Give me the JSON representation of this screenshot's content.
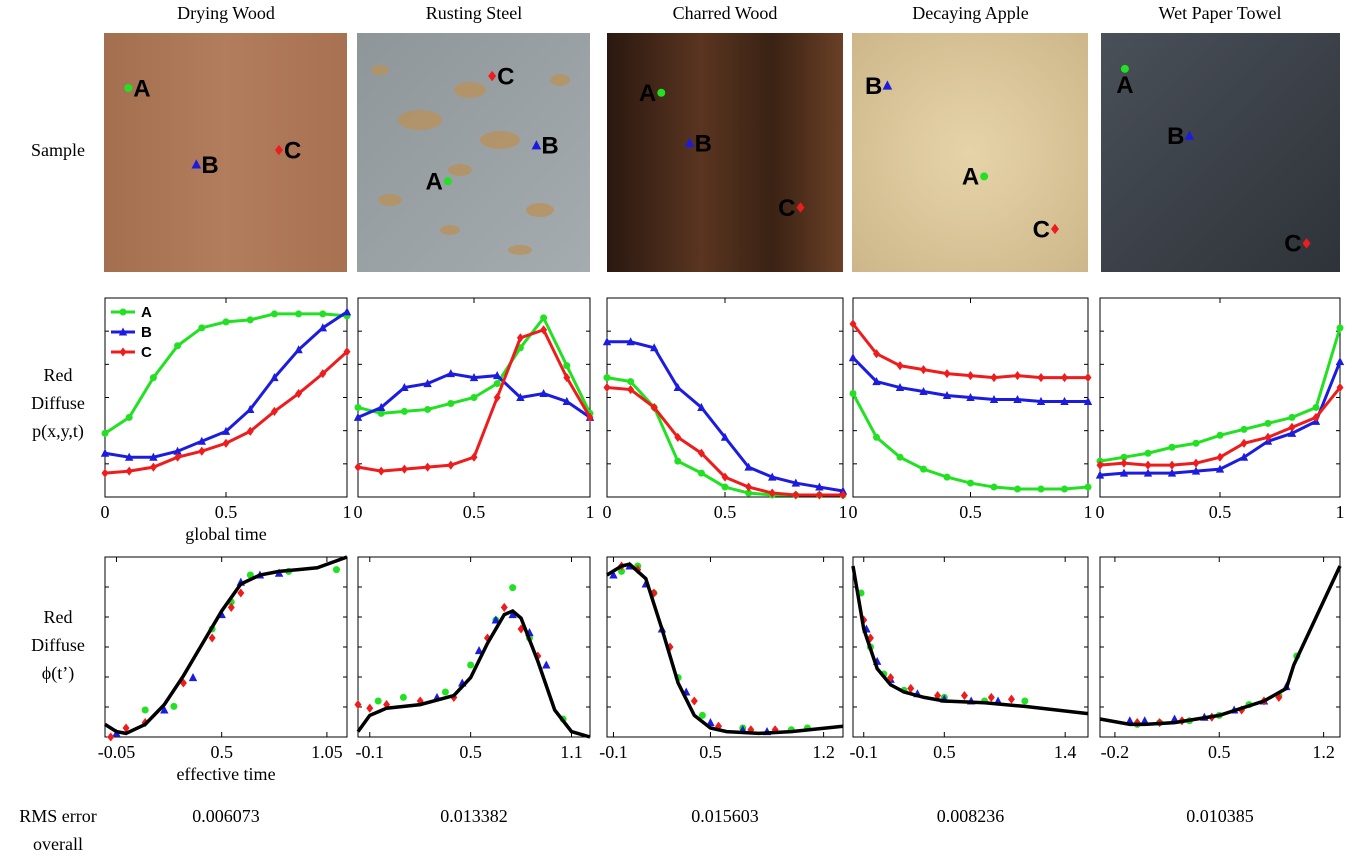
{
  "columns": [
    "Drying Wood",
    "Rusting Steel",
    "Charred Wood",
    "Decaying Apple",
    "Wet Paper Towel"
  ],
  "row_labels": [
    [
      "Sample"
    ],
    [
      "Red",
      "Diffuse",
      "p(x,y,t)"
    ],
    [
      "Red",
      "Diffuse",
      "ϕ(t’)"
    ],
    [
      "RMS error",
      "overall"
    ]
  ],
  "samples": [
    [
      "A",
      "B",
      "C"
    ],
    [
      "C",
      "B",
      "A"
    ],
    [
      "A",
      "B",
      "C"
    ],
    [
      "B",
      "A",
      "C"
    ],
    [
      "A",
      "B",
      "C"
    ]
  ],
  "rms": [
    0.006073,
    0.013382,
    0.015603,
    0.008236,
    0.010385
  ],
  "chart_data": [
    {
      "type": "line",
      "xlabel": "global time",
      "legend": "upper left",
      "xlim": [
        0,
        1
      ],
      "ylim": [
        0,
        1
      ],
      "xticks": [
        0,
        0.5,
        1
      ],
      "x": [
        0,
        0.1,
        0.2,
        0.3,
        0.4,
        0.5,
        0.6,
        0.7,
        0.8,
        0.9,
        1
      ],
      "series": [
        {
          "name": "A",
          "color": "#22e022",
          "marker": "circle",
          "values": [
            0.32,
            0.4,
            0.6,
            0.76,
            0.85,
            0.88,
            0.89,
            0.92,
            0.92,
            0.92,
            0.91
          ]
        },
        {
          "name": "B",
          "color": "#1c1ce0",
          "marker": "triangle",
          "values": [
            0.22,
            0.2,
            0.2,
            0.23,
            0.28,
            0.33,
            0.44,
            0.6,
            0.74,
            0.85,
            0.93
          ]
        },
        {
          "name": "C",
          "color": "#ee1c1c",
          "marker": "diamond",
          "values": [
            0.12,
            0.13,
            0.15,
            0.2,
            0.23,
            0.27,
            0.33,
            0.43,
            0.52,
            0.62,
            0.73
          ]
        }
      ]
    },
    {
      "type": "line",
      "xlim": [
        0,
        1
      ],
      "ylim": [
        0,
        1
      ],
      "xticks": [
        0,
        0.5,
        1
      ],
      "x": [
        0,
        0.1,
        0.2,
        0.3,
        0.4,
        0.5,
        0.6,
        0.7,
        0.8,
        0.9,
        1
      ],
      "series": [
        {
          "name": "A",
          "color": "#22e022",
          "marker": "circle",
          "values": [
            0.45,
            0.42,
            0.43,
            0.44,
            0.47,
            0.5,
            0.57,
            0.75,
            0.9,
            0.66,
            0.42
          ]
        },
        {
          "name": "B",
          "color": "#1c1ce0",
          "marker": "triangle",
          "values": [
            0.4,
            0.45,
            0.55,
            0.57,
            0.62,
            0.6,
            0.61,
            0.5,
            0.52,
            0.48,
            0.4
          ]
        },
        {
          "name": "C",
          "color": "#ee1c1c",
          "marker": "diamond",
          "values": [
            0.15,
            0.13,
            0.14,
            0.15,
            0.16,
            0.2,
            0.5,
            0.8,
            0.84,
            0.6,
            0.4
          ]
        }
      ]
    },
    {
      "type": "line",
      "xlim": [
        0,
        1
      ],
      "ylim": [
        0,
        1
      ],
      "xticks": [
        0,
        0.5,
        1
      ],
      "x": [
        0,
        0.1,
        0.2,
        0.3,
        0.4,
        0.5,
        0.6,
        0.7,
        0.8,
        0.9,
        1
      ],
      "series": [
        {
          "name": "A",
          "color": "#22e022",
          "marker": "circle",
          "values": [
            0.6,
            0.58,
            0.45,
            0.18,
            0.12,
            0.05,
            0.02,
            0.01,
            0.01,
            0.01,
            0.01
          ]
        },
        {
          "name": "B",
          "color": "#1c1ce0",
          "marker": "triangle",
          "values": [
            0.78,
            0.78,
            0.75,
            0.55,
            0.45,
            0.3,
            0.15,
            0.1,
            0.07,
            0.05,
            0.03
          ]
        },
        {
          "name": "C",
          "color": "#ee1c1c",
          "marker": "diamond",
          "values": [
            0.55,
            0.54,
            0.45,
            0.3,
            0.22,
            0.1,
            0.05,
            0.02,
            0.01,
            0.01,
            0.01
          ]
        }
      ]
    },
    {
      "type": "line",
      "xlim": [
        0,
        1
      ],
      "ylim": [
        0,
        1
      ],
      "xticks": [
        0,
        0.5,
        1
      ],
      "x": [
        0,
        0.1,
        0.2,
        0.3,
        0.4,
        0.5,
        0.6,
        0.7,
        0.8,
        0.9,
        1
      ],
      "series": [
        {
          "name": "A",
          "color": "#22e022",
          "marker": "circle",
          "values": [
            0.52,
            0.3,
            0.2,
            0.14,
            0.1,
            0.07,
            0.05,
            0.04,
            0.04,
            0.04,
            0.05
          ]
        },
        {
          "name": "B",
          "color": "#1c1ce0",
          "marker": "triangle",
          "values": [
            0.7,
            0.58,
            0.55,
            0.53,
            0.51,
            0.5,
            0.49,
            0.49,
            0.48,
            0.48,
            0.48
          ]
        },
        {
          "name": "C",
          "color": "#ee1c1c",
          "marker": "diamond",
          "values": [
            0.87,
            0.72,
            0.66,
            0.64,
            0.62,
            0.61,
            0.6,
            0.61,
            0.6,
            0.6,
            0.6
          ]
        }
      ]
    },
    {
      "type": "line",
      "xlim": [
        0,
        1
      ],
      "ylim": [
        0,
        1
      ],
      "xticks": [
        0,
        0.5,
        1
      ],
      "x": [
        0,
        0.1,
        0.2,
        0.3,
        0.4,
        0.5,
        0.6,
        0.7,
        0.8,
        0.9,
        1
      ],
      "series": [
        {
          "name": "A",
          "color": "#22e022",
          "marker": "circle",
          "values": [
            0.18,
            0.2,
            0.22,
            0.25,
            0.27,
            0.31,
            0.34,
            0.37,
            0.4,
            0.45,
            0.85
          ]
        },
        {
          "name": "B",
          "color": "#1c1ce0",
          "marker": "triangle",
          "values": [
            0.11,
            0.12,
            0.12,
            0.12,
            0.13,
            0.14,
            0.2,
            0.28,
            0.32,
            0.38,
            0.68
          ]
        },
        {
          "name": "C",
          "color": "#ee1c1c",
          "marker": "diamond",
          "values": [
            0.16,
            0.17,
            0.16,
            0.16,
            0.17,
            0.2,
            0.27,
            0.3,
            0.35,
            0.4,
            0.55
          ]
        }
      ]
    },
    {
      "type": "scatter",
      "xlabel": "effective time",
      "xlim": [
        -0.11,
        1.155
      ],
      "ylim": [
        0,
        1
      ],
      "xticks": [
        -0.05,
        0.5,
        1.05
      ],
      "series": [
        {
          "name": "A",
          "color": "#22e022",
          "marker": "circle",
          "x": [
            0.1,
            0.25,
            0.45,
            0.55,
            0.65,
            0.85,
            1.1
          ],
          "values": [
            0.15,
            0.17,
            0.6,
            0.75,
            0.9,
            0.92,
            0.93
          ]
        },
        {
          "name": "B",
          "color": "#1c1ce0",
          "marker": "triangle",
          "x": [
            -0.05,
            0.2,
            0.35,
            0.5,
            0.6,
            0.7,
            0.8
          ],
          "values": [
            0.02,
            0.15,
            0.33,
            0.68,
            0.86,
            0.9,
            0.91
          ]
        },
        {
          "name": "C",
          "color": "#ee1c1c",
          "marker": "diamond",
          "x": [
            -0.08,
            0.0,
            0.1,
            0.3,
            0.45,
            0.55,
            0.6
          ],
          "values": [
            0.0,
            0.05,
            0.08,
            0.3,
            0.55,
            0.72,
            0.8
          ]
        }
      ],
      "fit": {
        "color": "#000000",
        "x": [
          -0.11,
          -0.05,
          0,
          0.1,
          0.2,
          0.3,
          0.4,
          0.5,
          0.6,
          0.7,
          0.8,
          0.9,
          1.0,
          1.155
        ],
        "values": [
          0.07,
          0.03,
          0.02,
          0.07,
          0.18,
          0.34,
          0.52,
          0.7,
          0.85,
          0.9,
          0.92,
          0.93,
          0.94,
          1.0
        ]
      }
    },
    {
      "type": "scatter",
      "xlim": [
        -0.17,
        1.21
      ],
      "ylim": [
        0,
        1
      ],
      "xticks": [
        -0.1,
        0.5,
        1.1
      ],
      "series": [
        {
          "name": "A",
          "color": "#22e022",
          "marker": "circle",
          "x": [
            -0.05,
            0.1,
            0.35,
            0.5,
            0.65,
            0.75,
            0.85,
            1.05
          ],
          "values": [
            0.2,
            0.22,
            0.25,
            0.4,
            0.65,
            0.83,
            0.55,
            0.1
          ]
        },
        {
          "name": "B",
          "color": "#1c1ce0",
          "marker": "triangle",
          "x": [
            0.3,
            0.45,
            0.55,
            0.65,
            0.75,
            0.85,
            0.95
          ],
          "values": [
            0.22,
            0.3,
            0.48,
            0.65,
            0.68,
            0.58,
            0.4
          ]
        },
        {
          "name": "C",
          "color": "#ee1c1c",
          "marker": "diamond",
          "x": [
            -0.17,
            -0.1,
            0.0,
            0.2,
            0.4,
            0.6,
            0.7,
            0.8,
            0.9
          ],
          "values": [
            0.18,
            0.16,
            0.18,
            0.2,
            0.22,
            0.55,
            0.72,
            0.6,
            0.45
          ]
        }
      ],
      "fit": {
        "color": "#000000",
        "x": [
          -0.17,
          -0.1,
          0,
          0.2,
          0.4,
          0.5,
          0.6,
          0.7,
          0.75,
          0.8,
          0.9,
          1.0,
          1.1,
          1.21
        ],
        "values": [
          0.03,
          0.12,
          0.16,
          0.18,
          0.23,
          0.33,
          0.52,
          0.68,
          0.7,
          0.66,
          0.42,
          0.15,
          0.03,
          0.0
        ]
      }
    },
    {
      "type": "scatter",
      "xlim": [
        -0.14,
        1.32
      ],
      "ylim": [
        0,
        1
      ],
      "xticks": [
        -0.1,
        0.5,
        1.2
      ],
      "series": [
        {
          "name": "A",
          "color": "#22e022",
          "marker": "circle",
          "x": [
            -0.05,
            0.05,
            0.15,
            0.3,
            0.45,
            0.7,
            1.0,
            1.1
          ],
          "values": [
            0.92,
            0.95,
            0.8,
            0.33,
            0.12,
            0.05,
            0.04,
            0.05
          ]
        },
        {
          "name": "B",
          "color": "#1c1ce0",
          "marker": "triangle",
          "x": [
            -0.1,
            0.0,
            0.1,
            0.2,
            0.35,
            0.5,
            0.7,
            0.85
          ],
          "values": [
            0.9,
            0.95,
            0.85,
            0.6,
            0.25,
            0.08,
            0.04,
            0.03
          ]
        },
        {
          "name": "C",
          "color": "#ee1c1c",
          "marker": "diamond",
          "x": [
            -0.05,
            0.05,
            0.15,
            0.25,
            0.4,
            0.55,
            0.75,
            0.9
          ],
          "values": [
            0.95,
            0.93,
            0.8,
            0.5,
            0.2,
            0.06,
            0.04,
            0.04
          ]
        }
      ],
      "fit": {
        "color": "#000000",
        "x": [
          -0.14,
          -0.05,
          0.0,
          0.1,
          0.2,
          0.3,
          0.4,
          0.5,
          0.6,
          0.8,
          1.0,
          1.32
        ],
        "values": [
          0.9,
          0.95,
          0.96,
          0.88,
          0.6,
          0.3,
          0.12,
          0.05,
          0.03,
          0.02,
          0.03,
          0.06
        ]
      }
    },
    {
      "type": "scatter",
      "xlim": [
        -0.18,
        1.57
      ],
      "ylim": [
        0,
        1
      ],
      "xticks": [
        -0.1,
        0.5,
        1.4
      ],
      "series": [
        {
          "name": "A",
          "color": "#22e022",
          "marker": "circle",
          "x": [
            -0.12,
            -0.05,
            0.05,
            0.2,
            0.5,
            0.8,
            1.1
          ],
          "values": [
            0.8,
            0.5,
            0.35,
            0.26,
            0.22,
            0.2,
            0.2
          ]
        },
        {
          "name": "B",
          "color": "#1c1ce0",
          "marker": "triangle",
          "x": [
            -0.08,
            0.0,
            0.1,
            0.3,
            0.5,
            0.7,
            0.9
          ],
          "values": [
            0.6,
            0.42,
            0.32,
            0.24,
            0.21,
            0.2,
            0.2
          ]
        },
        {
          "name": "C",
          "color": "#ee1c1c",
          "marker": "diamond",
          "x": [
            -0.1,
            -0.05,
            0.1,
            0.25,
            0.45,
            0.65,
            0.85,
            1.0
          ],
          "values": [
            0.65,
            0.55,
            0.33,
            0.27,
            0.23,
            0.23,
            0.22,
            0.21
          ]
        }
      ],
      "fit": {
        "color": "#000000",
        "x": [
          -0.18,
          -0.1,
          0.0,
          0.1,
          0.2,
          0.35,
          0.5,
          0.8,
          1.1,
          1.57
        ],
        "values": [
          0.95,
          0.6,
          0.38,
          0.29,
          0.25,
          0.22,
          0.2,
          0.19,
          0.17,
          0.13
        ]
      }
    },
    {
      "type": "scatter",
      "xlim": [
        -0.3,
        1.31
      ],
      "ylim": [
        0,
        1
      ],
      "xticks": [
        -0.2,
        0.5,
        1.2
      ],
      "series": [
        {
          "name": "A",
          "color": "#22e022",
          "marker": "circle",
          "x": [
            -0.05,
            0.1,
            0.3,
            0.5,
            0.7,
            0.9,
            1.02
          ],
          "values": [
            0.07,
            0.08,
            0.09,
            0.12,
            0.18,
            0.23,
            0.45
          ]
        },
        {
          "name": "B",
          "color": "#1c1ce0",
          "marker": "triangle",
          "x": [
            -0.1,
            0.0,
            0.2,
            0.4,
            0.6,
            0.8,
            0.95
          ],
          "values": [
            0.09,
            0.09,
            0.1,
            0.11,
            0.15,
            0.2,
            0.28
          ]
        },
        {
          "name": "C",
          "color": "#ee1c1c",
          "marker": "diamond",
          "x": [
            -0.05,
            0.1,
            0.25,
            0.45,
            0.65,
            0.8,
            0.9
          ],
          "values": [
            0.08,
            0.08,
            0.09,
            0.11,
            0.15,
            0.2,
            0.22
          ]
        }
      ],
      "fit": {
        "color": "#000000",
        "x": [
          -0.3,
          -0.1,
          0.0,
          0.2,
          0.5,
          0.8,
          0.95,
          1.0,
          1.31
        ],
        "values": [
          0.1,
          0.07,
          0.07,
          0.08,
          0.12,
          0.2,
          0.27,
          0.4,
          0.95
        ]
      }
    }
  ]
}
